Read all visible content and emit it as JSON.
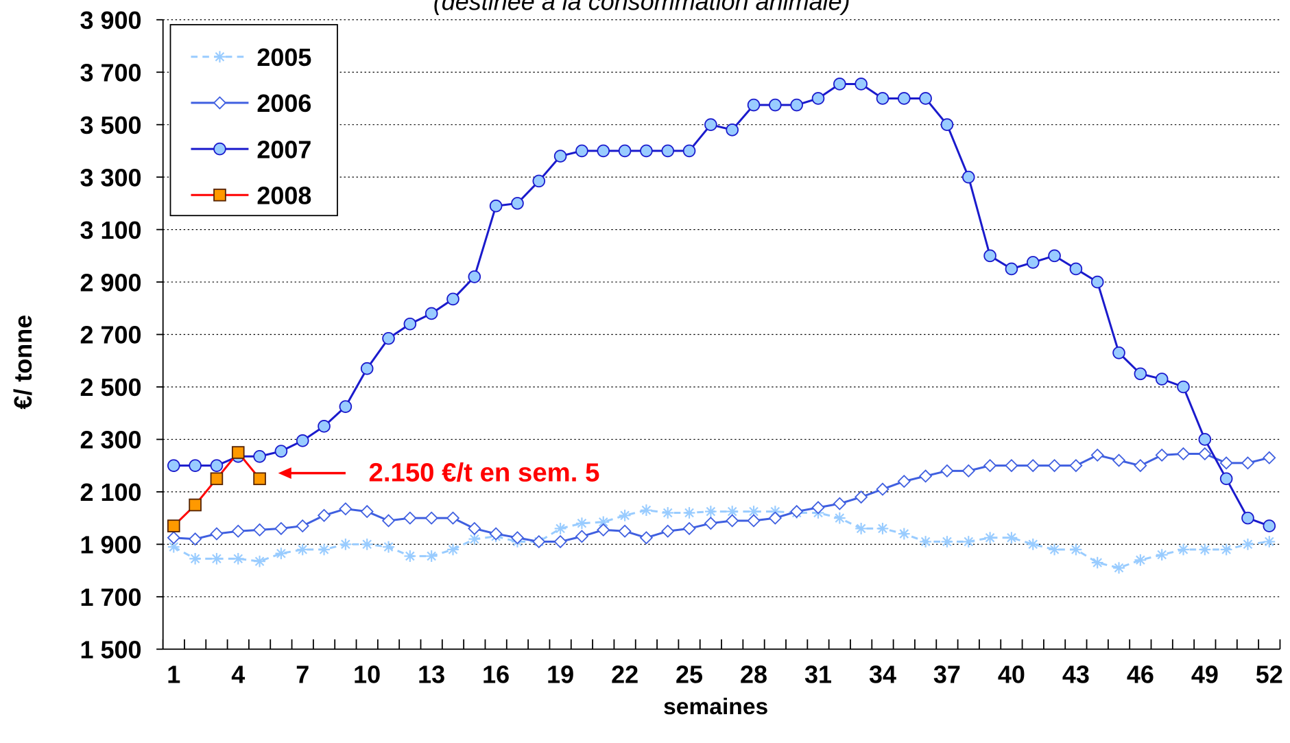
{
  "chart_data": {
    "type": "line",
    "subtitle": "(destinée à la consommation animale)",
    "y_label": "€/ tonne",
    "x_label": "semaines",
    "annotation": "2.150 €/t en sem. 5",
    "categories": [
      1,
      null,
      null,
      4,
      null,
      null,
      7,
      null,
      null,
      10,
      null,
      null,
      13,
      null,
      null,
      16,
      null,
      null,
      19,
      null,
      null,
      22,
      null,
      null,
      25,
      null,
      null,
      28,
      null,
      null,
      31,
      null,
      null,
      34,
      null,
      null,
      37,
      null,
      null,
      40,
      null,
      null,
      43,
      null,
      null,
      46,
      null,
      null,
      49,
      null,
      null,
      52
    ],
    "ylim": [
      1500,
      3900
    ],
    "yticks": [
      {
        "value": 1500,
        "label": "1 500"
      },
      {
        "value": 1700,
        "label": "1 700"
      },
      {
        "value": 1900,
        "label": "1 900"
      },
      {
        "value": 2100,
        "label": "2 100"
      },
      {
        "value": 2300,
        "label": "2 300"
      },
      {
        "value": 2500,
        "label": "2 500"
      },
      {
        "value": 2700,
        "label": "2 700"
      },
      {
        "value": 2900,
        "label": "2 900"
      },
      {
        "value": 3100,
        "label": "3 100"
      },
      {
        "value": 3300,
        "label": "3 300"
      },
      {
        "value": 3500,
        "label": "3 500"
      },
      {
        "value": 3700,
        "label": "3 700"
      },
      {
        "value": 3900,
        "label": "3 900"
      }
    ],
    "grid": true,
    "legend": "upper left",
    "series": [
      {
        "name": "2005",
        "color": "#99ccff",
        "marker": "star",
        "dashed": true,
        "values": [
          1890,
          1845,
          1845,
          1845,
          1835,
          1865,
          1880,
          1880,
          1900,
          1900,
          1890,
          1855,
          1855,
          1880,
          1920,
          1930,
          1910,
          1910,
          1960,
          1980,
          1985,
          2010,
          2030,
          2020,
          2020,
          2025,
          2025,
          2025,
          2025,
          2020,
          2020,
          2000,
          1960,
          1960,
          1940,
          1910,
          1910,
          1910,
          1925,
          1925,
          1900,
          1880,
          1880,
          1830,
          1810,
          1840,
          1860,
          1880,
          1880,
          1880,
          1900,
          1910
        ]
      },
      {
        "name": "2006",
        "color": "#3f5fe0",
        "marker": "diamond",
        "dashed": false,
        "values": [
          1925,
          1920,
          1940,
          1950,
          1955,
          1960,
          1970,
          2010,
          2035,
          2025,
          1990,
          2000,
          2000,
          2000,
          1960,
          1940,
          1925,
          1910,
          1910,
          1930,
          1955,
          1950,
          1925,
          1950,
          1960,
          1980,
          1990,
          1990,
          2000,
          2025,
          2040,
          2055,
          2080,
          2110,
          2140,
          2160,
          2180,
          2180,
          2200,
          2200,
          2200,
          2200,
          2200,
          2240,
          2220,
          2200,
          2240,
          2245,
          2245,
          2210,
          2210,
          2230
        ]
      },
      {
        "name": "2007",
        "color": "#1a1acc",
        "marker": "circle",
        "dashed": false,
        "values": [
          2200,
          2200,
          2200,
          2235,
          2235,
          2255,
          2295,
          2350,
          2425,
          2570,
          2685,
          2740,
          2780,
          2835,
          2920,
          3190,
          3200,
          3285,
          3380,
          3400,
          3400,
          3400,
          3400,
          3400,
          3400,
          3500,
          3480,
          3575,
          3575,
          3575,
          3600,
          3655,
          3655,
          3600,
          3600,
          3600,
          3500,
          3300,
          3000,
          2950,
          2975,
          3000,
          2950,
          2900,
          2630,
          2550,
          2530,
          2500,
          2300,
          2150,
          2000,
          1970
        ]
      },
      {
        "name": "2008",
        "color": "#ff0000",
        "marker": "square",
        "dashed": false,
        "values": [
          1970,
          2050,
          2150,
          2250,
          2150,
          null,
          null,
          null,
          null,
          null,
          null,
          null,
          null,
          null,
          null,
          null,
          null,
          null,
          null,
          null,
          null,
          null,
          null,
          null,
          null,
          null,
          null,
          null,
          null,
          null,
          null,
          null,
          null,
          null,
          null,
          null,
          null,
          null,
          null,
          null,
          null,
          null,
          null,
          null,
          null,
          null,
          null,
          null,
          null,
          null,
          null,
          null
        ]
      }
    ]
  }
}
